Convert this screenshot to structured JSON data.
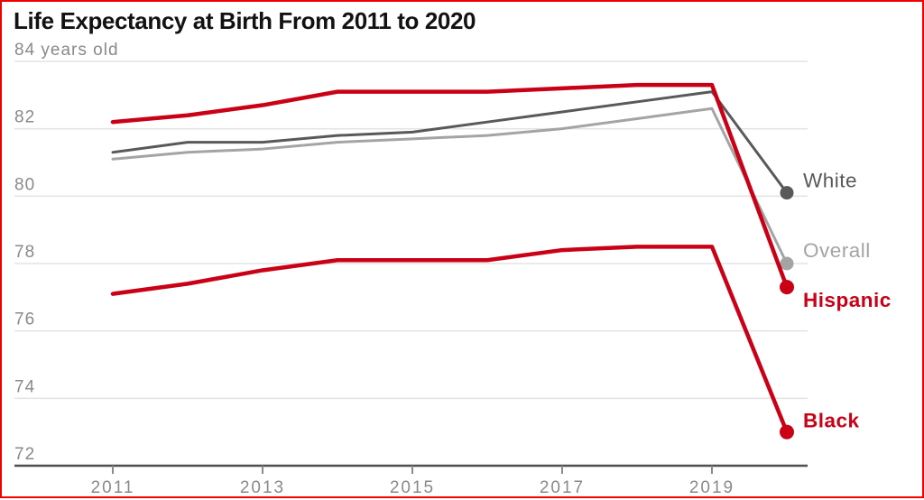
{
  "title": "Life Expectancy at Birth From 2011 to 2020",
  "chart_data": {
    "type": "line",
    "x": [
      2011,
      2012,
      2013,
      2014,
      2015,
      2016,
      2017,
      2018,
      2019,
      2020
    ],
    "series": [
      {
        "name": "White",
        "color": "#59595b",
        "label_bold": false,
        "values": [
          81.3,
          81.6,
          81.6,
          81.8,
          81.9,
          82.2,
          82.5,
          82.8,
          83.1,
          80.1
        ]
      },
      {
        "name": "Overall",
        "color": "#a4a4a4",
        "label_bold": false,
        "values": [
          81.1,
          81.3,
          81.4,
          81.6,
          81.7,
          81.8,
          82.0,
          82.3,
          82.6,
          78.0
        ]
      },
      {
        "name": "Hispanic",
        "color": "#c90016",
        "label_bold": true,
        "values": [
          82.2,
          82.4,
          82.7,
          83.1,
          83.1,
          83.1,
          83.2,
          83.3,
          83.3,
          77.3
        ]
      },
      {
        "name": "Black",
        "color": "#c90016",
        "label_bold": true,
        "values": [
          77.1,
          77.4,
          77.8,
          78.1,
          78.1,
          78.1,
          78.4,
          78.5,
          78.5,
          73.0
        ]
      }
    ],
    "ylim": [
      72,
      84.6
    ],
    "xlim": [
      2011,
      2020
    ],
    "yticks": [
      {
        "value": 84,
        "label": "84 years old"
      },
      {
        "value": 82,
        "label": "82"
      },
      {
        "value": 80,
        "label": "80"
      },
      {
        "value": 78,
        "label": "78"
      },
      {
        "value": 76,
        "label": "76"
      },
      {
        "value": 74,
        "label": "74"
      },
      {
        "value": 72,
        "label": "72"
      }
    ],
    "xticks": [
      "2011",
      "2013",
      "2015",
      "2017",
      "2019"
    ],
    "grid": true,
    "legend_position": "line-end-labels"
  },
  "colors": {
    "accent_red": "#c90016",
    "white_series": "#59595b",
    "overall_series": "#a4a4a4",
    "gridline": "#e4e4e4",
    "axis_line": "#4f4f4f",
    "tick_label": "#8a8a8a",
    "title_text": "#121212",
    "frame_border": "#f20000",
    "background": "#ffffff"
  }
}
